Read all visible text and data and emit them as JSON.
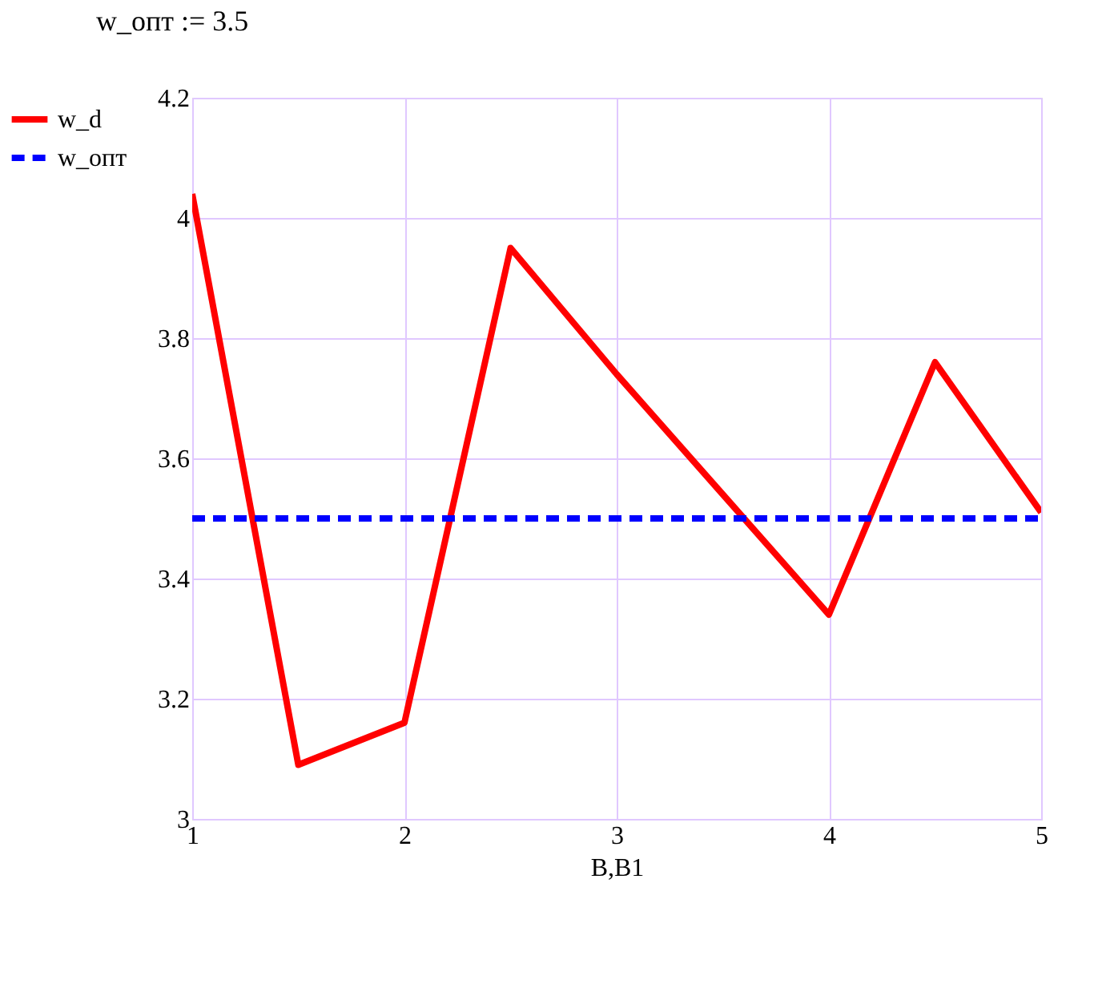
{
  "chart_data": {
    "type": "line",
    "title": "w_опт := 3.5",
    "xlabel": "B,B1",
    "x": [
      1,
      1.5,
      2,
      2.5,
      3,
      3.5,
      4,
      4.5,
      5
    ],
    "series": [
      {
        "name": "w_d",
        "color": "#ff0000",
        "line_style": "solid",
        "values": [
          4.04,
          3.09,
          3.16,
          3.95,
          3.74,
          3.54,
          3.34,
          3.76,
          3.51
        ]
      },
      {
        "name": "w_опт",
        "color": "#0000ff",
        "line_style": "dashed",
        "values": [
          3.5,
          3.5,
          3.5,
          3.5,
          3.5,
          3.5,
          3.5,
          3.5,
          3.5
        ]
      }
    ],
    "xlim": [
      1,
      5
    ],
    "xticks": [
      1,
      2,
      3,
      4,
      5
    ],
    "ylim": [
      3,
      4.2
    ],
    "yticks": [
      3,
      3.2,
      3.4,
      3.6,
      3.8,
      4,
      4.2
    ],
    "grid": true,
    "legend": "left",
    "marker": "none"
  }
}
